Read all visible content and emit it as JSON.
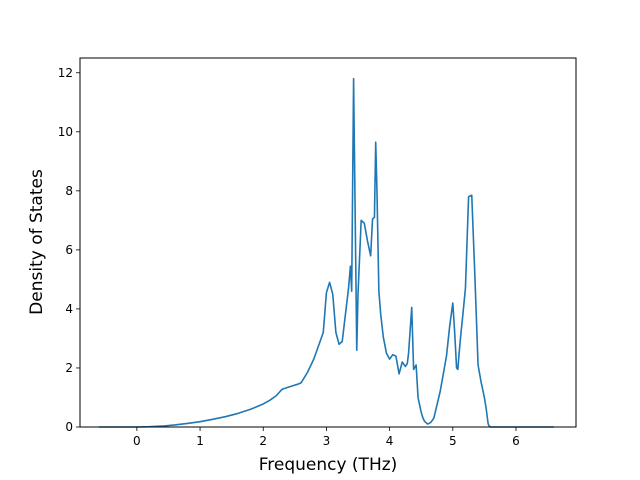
{
  "chart_data": {
    "type": "line",
    "xlabel": "Frequency (THz)",
    "ylabel": "Density of States",
    "xlim": [
      -0.9,
      6.95
    ],
    "ylim": [
      0,
      12.5
    ],
    "xticks": [
      0,
      1,
      2,
      3,
      4,
      5,
      6
    ],
    "yticks": [
      0,
      2,
      4,
      6,
      8,
      10,
      12
    ],
    "grid": false,
    "line_color": "#1f77b4",
    "series": [
      {
        "x": [
          -0.6,
          -0.3,
          0.0,
          0.2,
          0.4,
          0.6,
          0.8,
          1.0,
          1.2,
          1.4,
          1.6,
          1.8,
          2.0,
          2.1,
          2.2,
          2.3,
          2.4,
          2.5,
          2.55,
          2.6,
          2.7,
          2.8,
          2.9,
          2.95,
          3.0,
          3.05,
          3.1,
          3.15,
          3.2,
          3.25,
          3.3,
          3.35,
          3.38,
          3.4,
          3.43,
          3.48,
          3.5,
          3.55,
          3.6,
          3.65,
          3.7,
          3.73,
          3.76,
          3.78,
          3.8,
          3.83,
          3.86,
          3.9,
          3.95,
          4.0,
          4.05,
          4.1,
          4.15,
          4.2,
          4.25,
          4.28,
          4.3,
          4.35,
          4.38,
          4.42,
          4.45,
          4.48,
          4.5,
          4.52,
          4.55,
          4.6,
          4.65,
          4.7,
          4.8,
          4.9,
          4.95,
          5.0,
          5.03,
          5.06,
          5.08,
          5.1,
          5.13,
          5.15,
          5.2,
          5.25,
          5.3,
          5.35,
          5.4,
          5.45,
          5.5,
          5.53,
          5.56,
          5.58,
          5.6,
          5.65,
          5.7,
          5.8,
          5.9,
          5.95,
          6.0,
          6.05,
          6.3,
          6.6
        ],
        "y": [
          0,
          0,
          0,
          0.01,
          0.03,
          0.07,
          0.12,
          0.18,
          0.26,
          0.35,
          0.46,
          0.6,
          0.78,
          0.9,
          1.05,
          1.28,
          1.35,
          1.42,
          1.45,
          1.5,
          1.85,
          2.3,
          2.9,
          3.2,
          4.55,
          4.9,
          4.5,
          3.2,
          2.8,
          2.9,
          3.8,
          4.7,
          5.45,
          4.6,
          11.8,
          2.6,
          4.5,
          7.0,
          6.9,
          6.3,
          5.8,
          7.05,
          7.1,
          9.65,
          8.0,
          4.6,
          3.8,
          3.05,
          2.5,
          2.3,
          2.45,
          2.4,
          1.8,
          2.2,
          2.05,
          2.15,
          2.5,
          4.05,
          1.95,
          2.1,
          1.0,
          0.7,
          0.5,
          0.35,
          0.2,
          0.1,
          0.15,
          0.3,
          1.2,
          2.4,
          3.4,
          4.2,
          3.2,
          2.0,
          1.95,
          2.5,
          3.2,
          3.6,
          4.7,
          7.8,
          7.85,
          5.1,
          2.1,
          1.5,
          1.0,
          0.6,
          0.1,
          0.02,
          0.0,
          0.0,
          0.0,
          0.0,
          0.0,
          0.0,
          0.0,
          0.0,
          0.0,
          0.0
        ]
      }
    ]
  }
}
